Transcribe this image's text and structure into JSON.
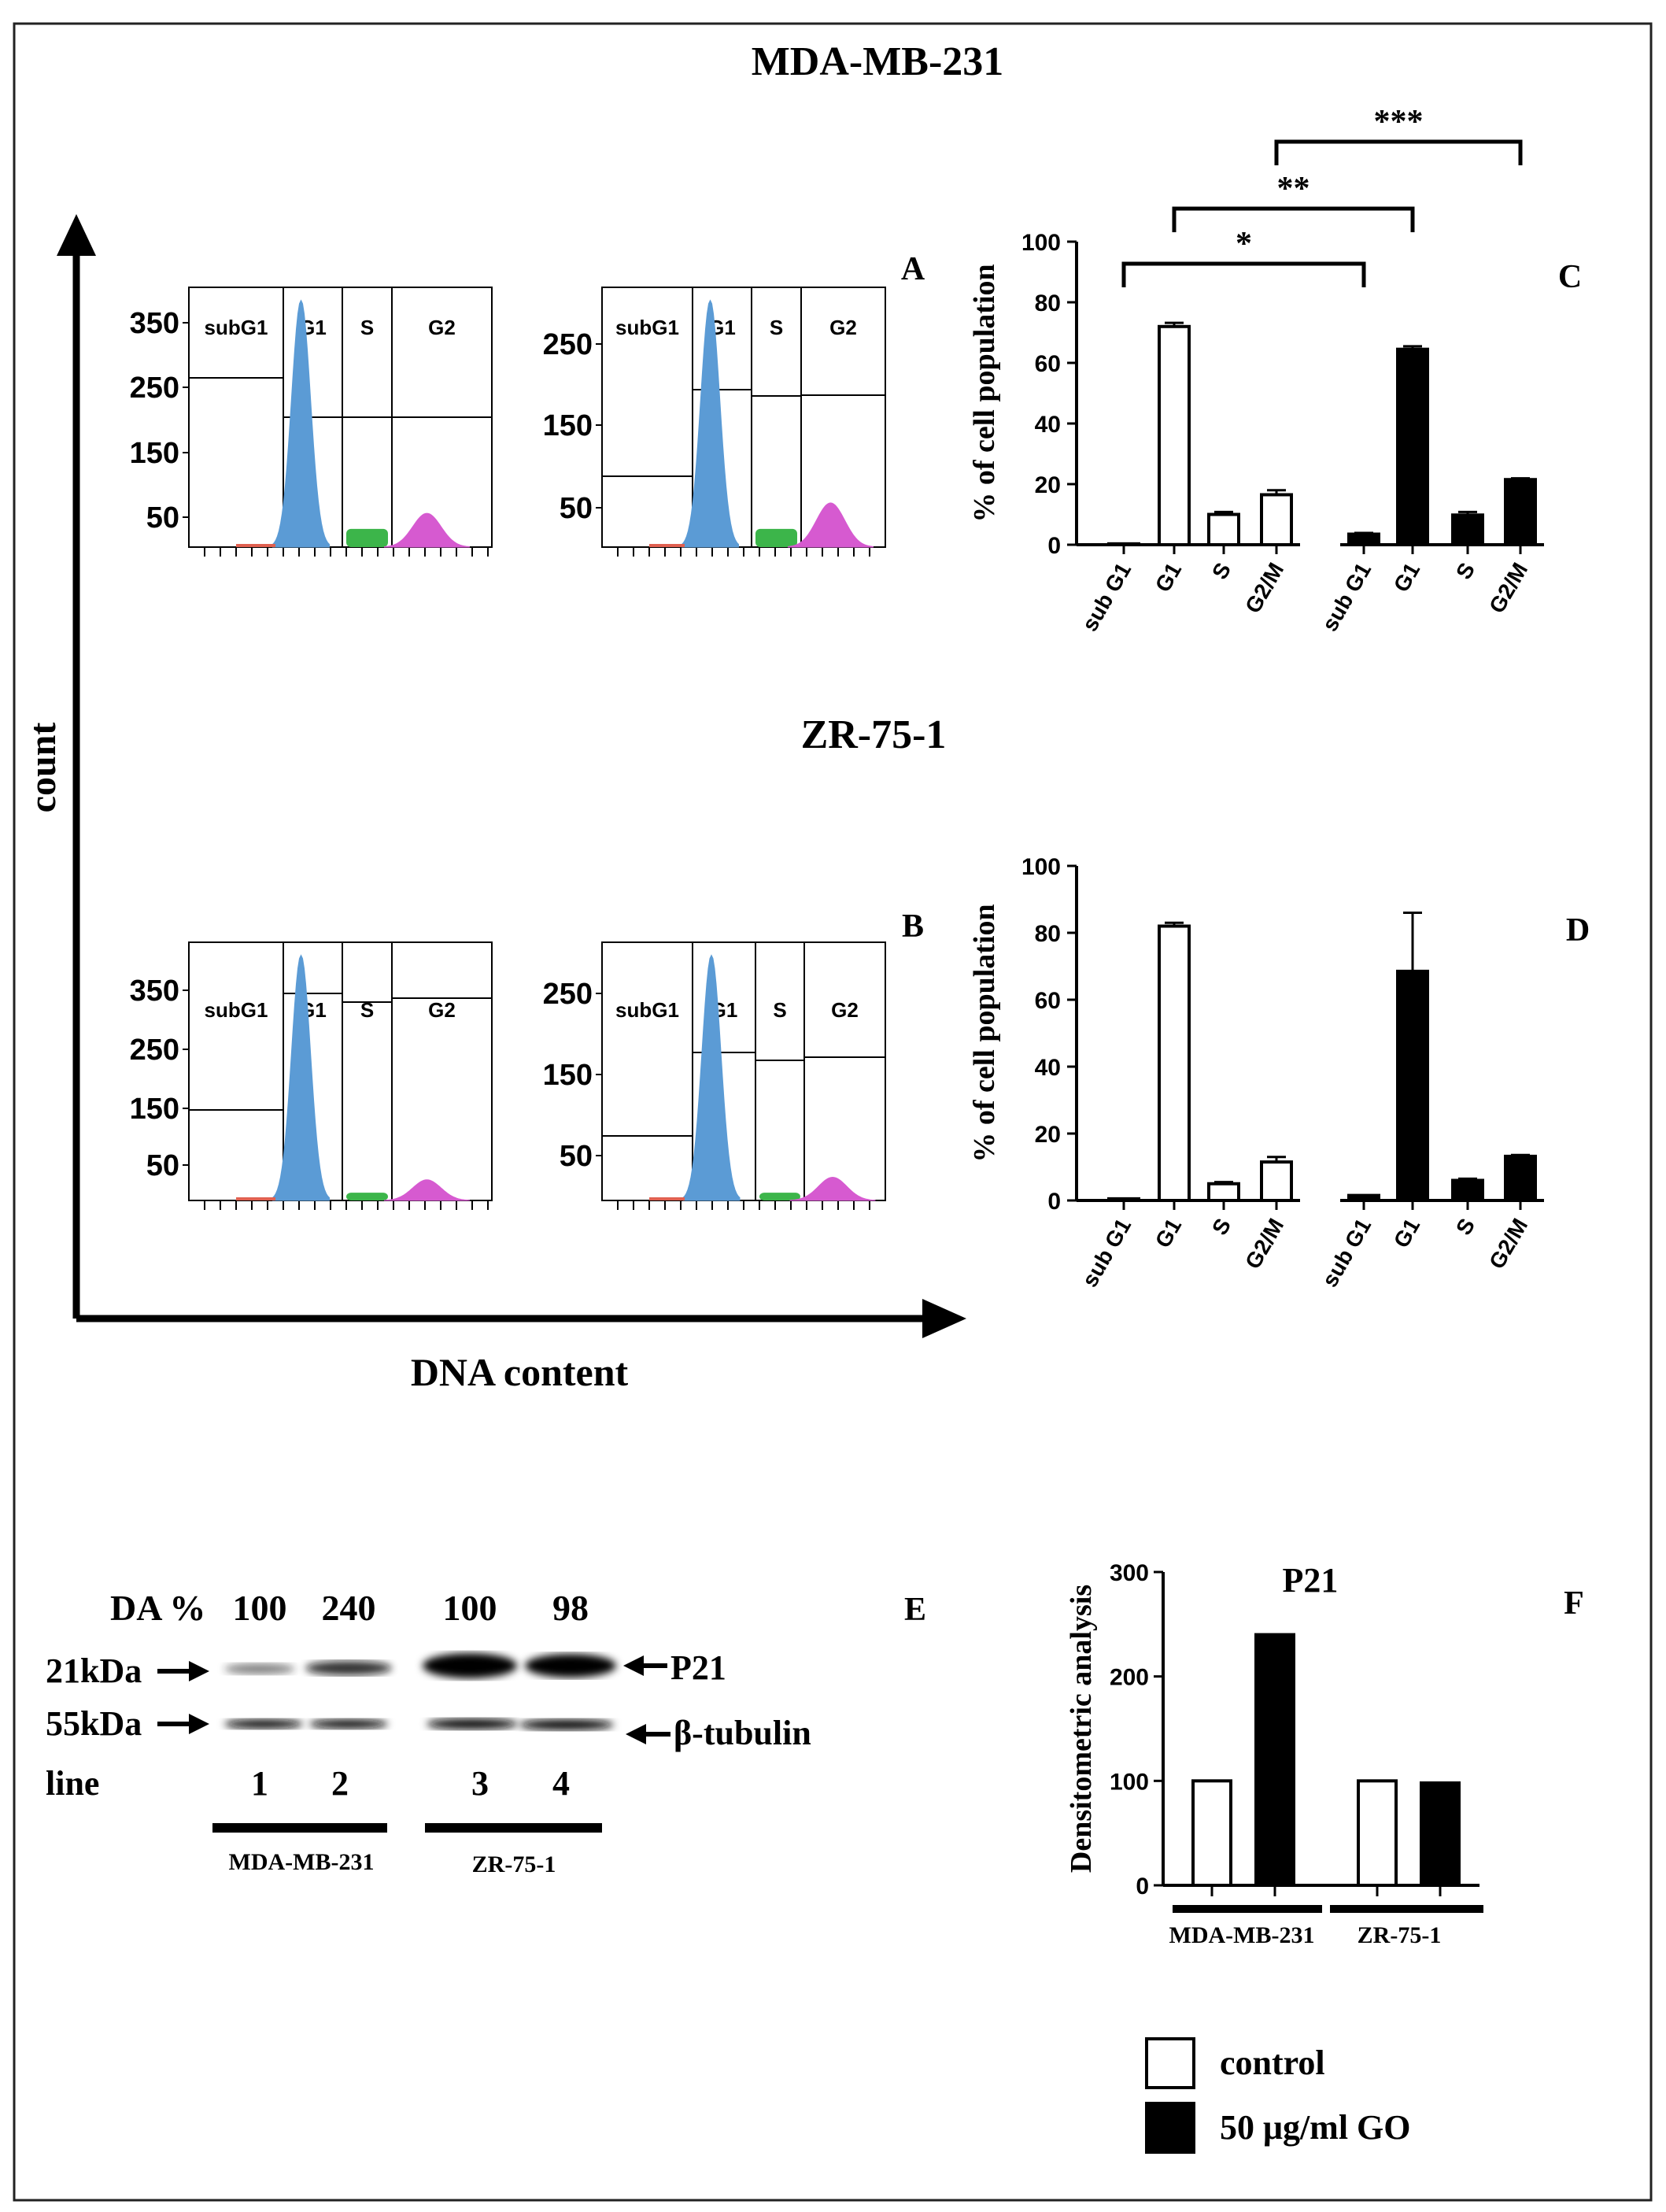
{
  "titles": {
    "top": "MDA-MB-231",
    "middle": "ZR-75-1"
  },
  "panel_letters": [
    "A",
    "B",
    "C",
    "D",
    "E",
    "F"
  ],
  "flow_axes": {
    "y_label": "count",
    "x_label": "DNA content"
  },
  "histograms": [
    {
      "panel": "A-left",
      "y_ticks": [
        "350",
        "250",
        "150",
        "50"
      ],
      "gate_labels": [
        "subG1",
        "G1",
        "S",
        "G2"
      ]
    },
    {
      "panel": "A-right",
      "y_ticks": [
        "250",
        "150",
        "50"
      ],
      "gate_labels": [
        "subG1",
        "G1",
        "S",
        "G2"
      ]
    },
    {
      "panel": "B-left",
      "y_ticks": [
        "350",
        "250",
        "150",
        "50"
      ],
      "gate_labels": [
        "subG1",
        "G1",
        "S",
        "G2"
      ]
    },
    {
      "panel": "B-right",
      "y_ticks": [
        "250",
        "150",
        "50"
      ],
      "gate_labels": [
        "subG1",
        "G1",
        "S",
        "G2"
      ]
    }
  ],
  "colors": {
    "subG1": "#e06050",
    "G1": "#5b9bd5",
    "S": "#3cb54a",
    "G2": "#d65ad0",
    "control": "#ffffff",
    "treated": "#000000"
  },
  "western_blot": {
    "header_label": "DA %",
    "densitometry_values": [
      "100",
      "240",
      "100",
      "98"
    ],
    "marker_21": "21kDa",
    "marker_55": "55kDa",
    "protein_p21": "P21",
    "protein_tubulin": "β-tubulin",
    "line_label": "line",
    "lanes": [
      "1",
      "2",
      "3",
      "4"
    ],
    "groups": [
      "MDA-MB-231",
      "ZR-75-1"
    ]
  },
  "legend": {
    "items": [
      {
        "label": "control",
        "color": "#ffffff"
      },
      {
        "label": "50 μg/ml GO",
        "color": "#000000"
      }
    ]
  },
  "chart_data": [
    {
      "panel": "C",
      "type": "bar",
      "ylabel": "% of cell population",
      "ylim": [
        0,
        100
      ],
      "yticks": [
        0,
        20,
        40,
        60,
        80,
        100
      ],
      "categories": [
        "sub G1",
        "G1",
        "S",
        "G2/M",
        "sub G1",
        "G1",
        "S",
        "G2/M"
      ],
      "values": [
        0.3,
        72,
        10,
        16.5,
        3.5,
        64.5,
        9.8,
        21.5
      ],
      "errors": [
        0,
        1.2,
        0.8,
        1.5,
        0.4,
        1.0,
        1.0,
        0.4
      ],
      "fills": [
        "white",
        "white",
        "white",
        "white",
        "black",
        "black",
        "black",
        "black"
      ],
      "significance": [
        {
          "from": 0,
          "to": 4,
          "label": "*"
        },
        {
          "from": 1,
          "to": 5,
          "label": "**"
        },
        {
          "from": 3,
          "to": 7,
          "label": "***"
        }
      ]
    },
    {
      "panel": "D",
      "type": "bar",
      "ylabel": "% of cell population",
      "ylim": [
        0,
        100
      ],
      "yticks": [
        0,
        20,
        40,
        60,
        80,
        100
      ],
      "categories": [
        "sub G1",
        "G1",
        "S",
        "G2/M",
        "sub G1",
        "G1",
        "S",
        "G2/M"
      ],
      "values": [
        0.5,
        82,
        5,
        11.5,
        1.5,
        68.5,
        6,
        13.2
      ],
      "errors": [
        0,
        1,
        0.5,
        1.5,
        0,
        17.5,
        0.5,
        0.4
      ],
      "fills": [
        "white",
        "white",
        "white",
        "white",
        "black",
        "black",
        "black",
        "black"
      ]
    },
    {
      "panel": "F",
      "type": "bar",
      "title": "P21",
      "ylabel": "Densitometric analysis",
      "ylim": [
        0,
        300
      ],
      "yticks": [
        0,
        100,
        200,
        300
      ],
      "groups": [
        "MDA-MB-231",
        "ZR-75-1"
      ],
      "series": [
        {
          "name": "control",
          "values": [
            100,
            100
          ]
        },
        {
          "name": "50 μg/ml GO",
          "values": [
            240,
            98
          ]
        }
      ]
    }
  ]
}
